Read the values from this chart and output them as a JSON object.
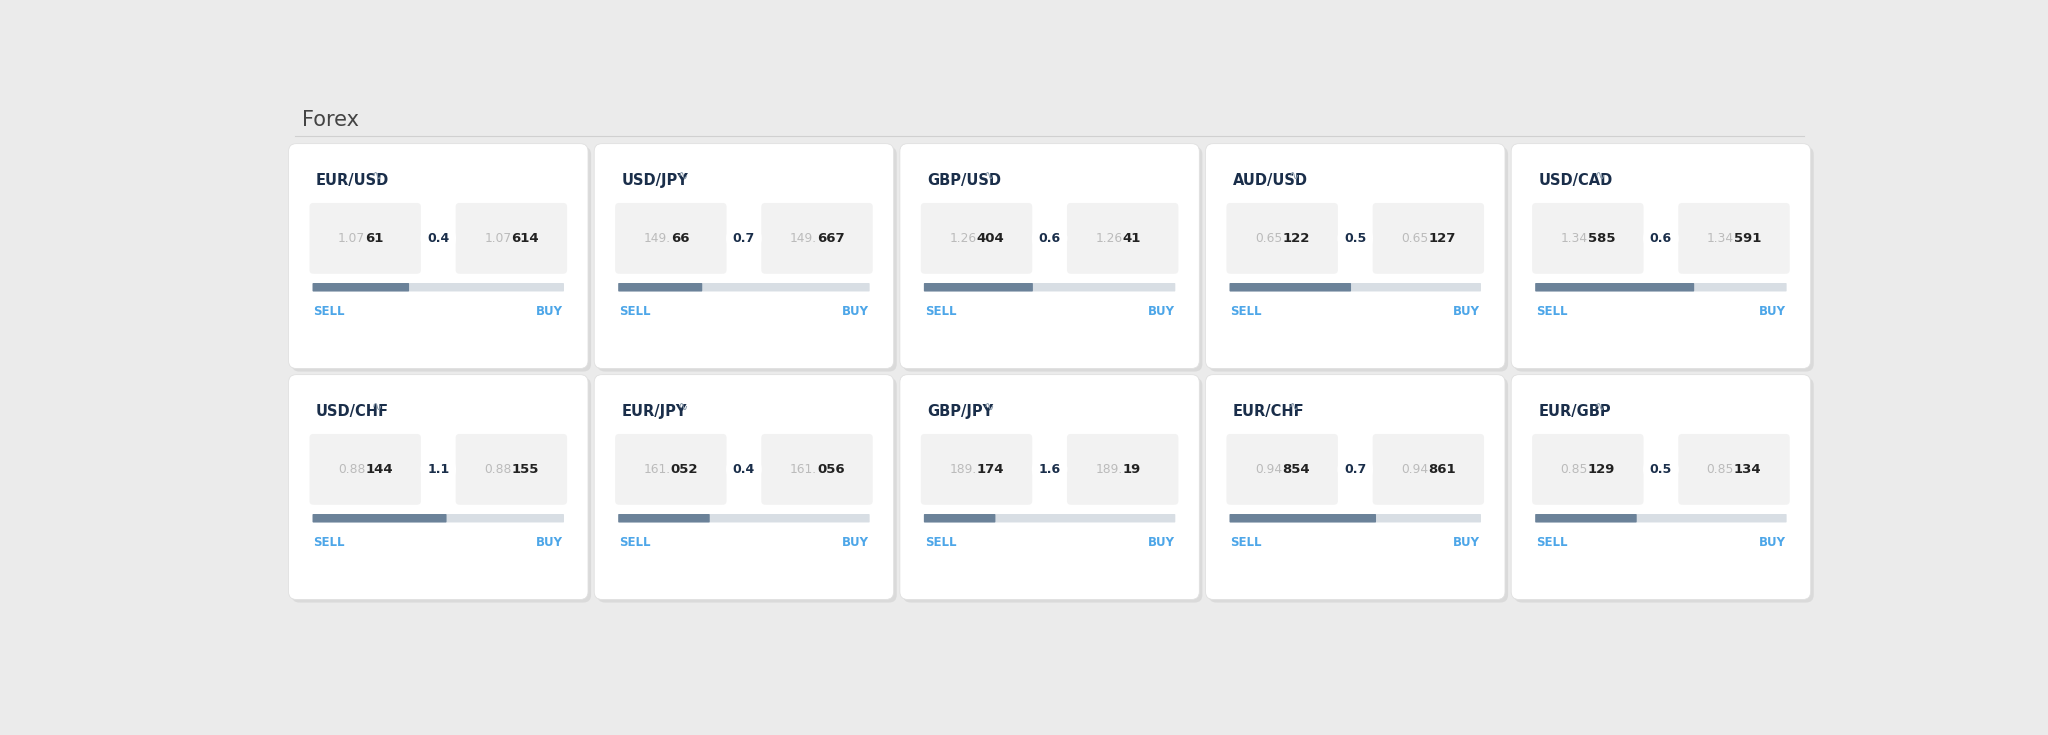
{
  "title": "Forex",
  "bg_color": "#ebebeb",
  "card_bg": "#ffffff",
  "pairs": [
    {
      "name": "EUR/USD",
      "sell_prefix": "1.07",
      "sell_bold": "61",
      "sell_suffix": "",
      "spread": "0.4",
      "buy_prefix": "1.07",
      "buy_bold": "61",
      "buy_suffix": "4",
      "bar_fill": 0.38
    },
    {
      "name": "USD/JPY",
      "sell_prefix": "149.",
      "sell_bold": "66",
      "sell_suffix": "",
      "spread": "0.7",
      "buy_prefix": "149.",
      "buy_bold": "66",
      "buy_suffix": "7",
      "bar_fill": 0.33
    },
    {
      "name": "GBP/USD",
      "sell_prefix": "1.26",
      "sell_bold": "40",
      "sell_suffix": "4",
      "spread": "0.6",
      "buy_prefix": "1.26",
      "buy_bold": "4",
      "buy_suffix": "1",
      "bar_fill": 0.43
    },
    {
      "name": "AUD/USD",
      "sell_prefix": "0.65",
      "sell_bold": "12",
      "sell_suffix": "2",
      "spread": "0.5",
      "buy_prefix": "0.65",
      "buy_bold": "12",
      "buy_suffix": "7",
      "bar_fill": 0.48
    },
    {
      "name": "USD/CAD",
      "sell_prefix": "1.34",
      "sell_bold": "58",
      "sell_suffix": "5",
      "spread": "0.6",
      "buy_prefix": "1.34",
      "buy_bold": "59",
      "buy_suffix": "1",
      "bar_fill": 0.63
    },
    {
      "name": "USD/CHF",
      "sell_prefix": "0.88",
      "sell_bold": "14",
      "sell_suffix": "4",
      "spread": "1.1",
      "buy_prefix": "0.88",
      "buy_bold": "15",
      "buy_suffix": "5",
      "bar_fill": 0.53
    },
    {
      "name": "EUR/JPY",
      "sell_prefix": "161.",
      "sell_bold": "05",
      "sell_suffix": "2",
      "spread": "0.4",
      "buy_prefix": "161.",
      "buy_bold": "05",
      "buy_suffix": "6",
      "bar_fill": 0.36
    },
    {
      "name": "GBP/JPY",
      "sell_prefix": "189.",
      "sell_bold": "17",
      "sell_suffix": "4",
      "spread": "1.6",
      "buy_prefix": "189.",
      "buy_bold": "19",
      "buy_suffix": "",
      "bar_fill": 0.28
    },
    {
      "name": "EUR/CHF",
      "sell_prefix": "0.94",
      "sell_bold": "85",
      "sell_suffix": "4",
      "spread": "0.7",
      "buy_prefix": "0.94",
      "buy_bold": "86",
      "buy_suffix": "1",
      "bar_fill": 0.58
    },
    {
      "name": "EUR/GBP",
      "sell_prefix": "0.85",
      "sell_bold": "12",
      "sell_suffix": "9",
      "spread": "0.5",
      "buy_prefix": "0.85",
      "buy_bold": "13",
      "buy_suffix": "4",
      "bar_fill": 0.4
    }
  ],
  "sell_color": "#4da6e8",
  "buy_color": "#4da6e8",
  "pair_name_color": "#1a2e4a",
  "spread_color": "#1a2e4a",
  "price_faint_color": "#bbbbbb",
  "price_bold_color": "#222222",
  "bar_dark": "#6b8299",
  "bar_light": "#d8dee4",
  "title_color": "#444444",
  "separator_color": "#d0d0d0"
}
